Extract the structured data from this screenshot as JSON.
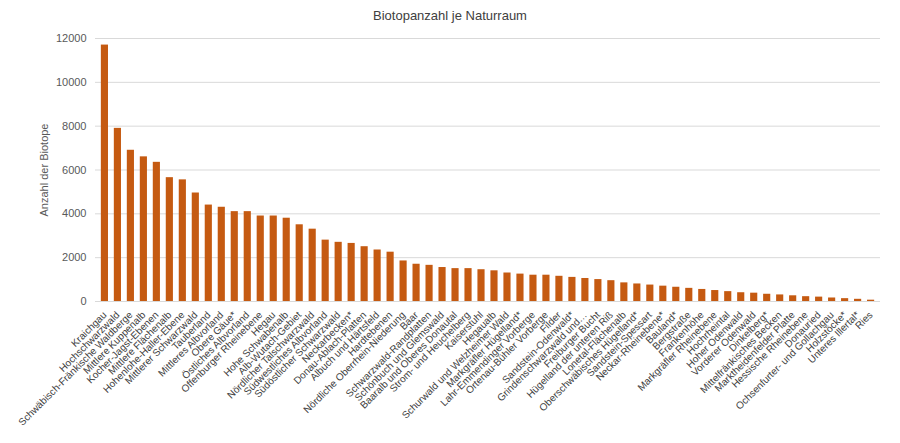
{
  "chart_data": {
    "type": "bar",
    "title": "Biotopanzahl je Naturraum",
    "y_label": "Anzahl der Biotope",
    "categories": [
      "Kraichgau",
      "Hochschwarzwald",
      "Schwäbisch-Fränkische Waldberge",
      "Mittlere Kuppenalb",
      "Kocher-Jagst-Ebenen",
      "Mittlere Flächenalb",
      "Hohenlohe-Haller-Ebene",
      "Mittlerer Schwarzwald",
      "Tauberland",
      "Mittleres Albvorland",
      "Obere Gäue*",
      "Östliches Albvorland",
      "Offenburger Rheinebene",
      "Hegau",
      "Hohe Schwabenalb",
      "Alb-Wutach-Gebiet",
      "Nördlicher Talschwarzwald",
      "Südwestliches Albvorland",
      "Südöstlicher Schwarzwald",
      "Neckarbecken*",
      "Donau-Ablach-Platten",
      "Albuch und Härtsfeld",
      "Hardtebenen",
      "Nördliche Oberrhein-Niederung",
      "Baar",
      "Schwarzwald-Randplatten",
      "Schönbuch und Glemswald",
      "Baaralb und Oberes Donautal",
      "Strom- und Heuchelberg",
      "Kaiserstuhl",
      "Hegaualb",
      "Schurwald und Welzheimer Wald",
      "Markgräfler Hügelland*",
      "Lahr-Emmendinger Vorberge",
      "Ortenau-Bühler Vorberge",
      "Filder",
      "Sandstein-Odenwald*",
      "Grindenschwarzwald und…",
      "Freiburger Bucht",
      "Hügelland der unteren Riß",
      "Lonetal-Flächenalb",
      "Oberschwäbisches Hügelland*",
      "Sandstein-Spessart",
      "Neckar-Rheinebene*",
      "Bauland*",
      "Bergstraße",
      "Frankenhöhe",
      "Markgräfler Rheinebene",
      "Hochrheintal",
      "Hoher Odenwald",
      "Vorderer Odenwald",
      "Dinkelberg*",
      "Mittelfränkisches Becken",
      "Marktheidenfelder Platte",
      "Hessische Rheinebene",
      "Donauried",
      "Ochsenfurter- und Gollachgau",
      "Holzstöcke*",
      "Unteres Illertal*",
      "Ries"
    ],
    "values": [
      11700,
      7900,
      6900,
      6600,
      6350,
      5650,
      5550,
      4950,
      4400,
      4300,
      4100,
      4100,
      3900,
      3900,
      3800,
      3500,
      3300,
      2800,
      2700,
      2650,
      2500,
      2350,
      2250,
      1850,
      1700,
      1650,
      1550,
      1500,
      1500,
      1450,
      1400,
      1300,
      1250,
      1200,
      1200,
      1150,
      1100,
      1050,
      1000,
      950,
      850,
      800,
      750,
      700,
      650,
      600,
      550,
      500,
      450,
      400,
      380,
      330,
      300,
      260,
      220,
      200,
      160,
      130,
      100,
      60
    ],
    "color": "#c55a11",
    "ylim": [
      0,
      12000
    ],
    "yticks": [
      0,
      2000,
      4000,
      6000,
      8000,
      10000,
      12000
    ],
    "grid": true
  }
}
